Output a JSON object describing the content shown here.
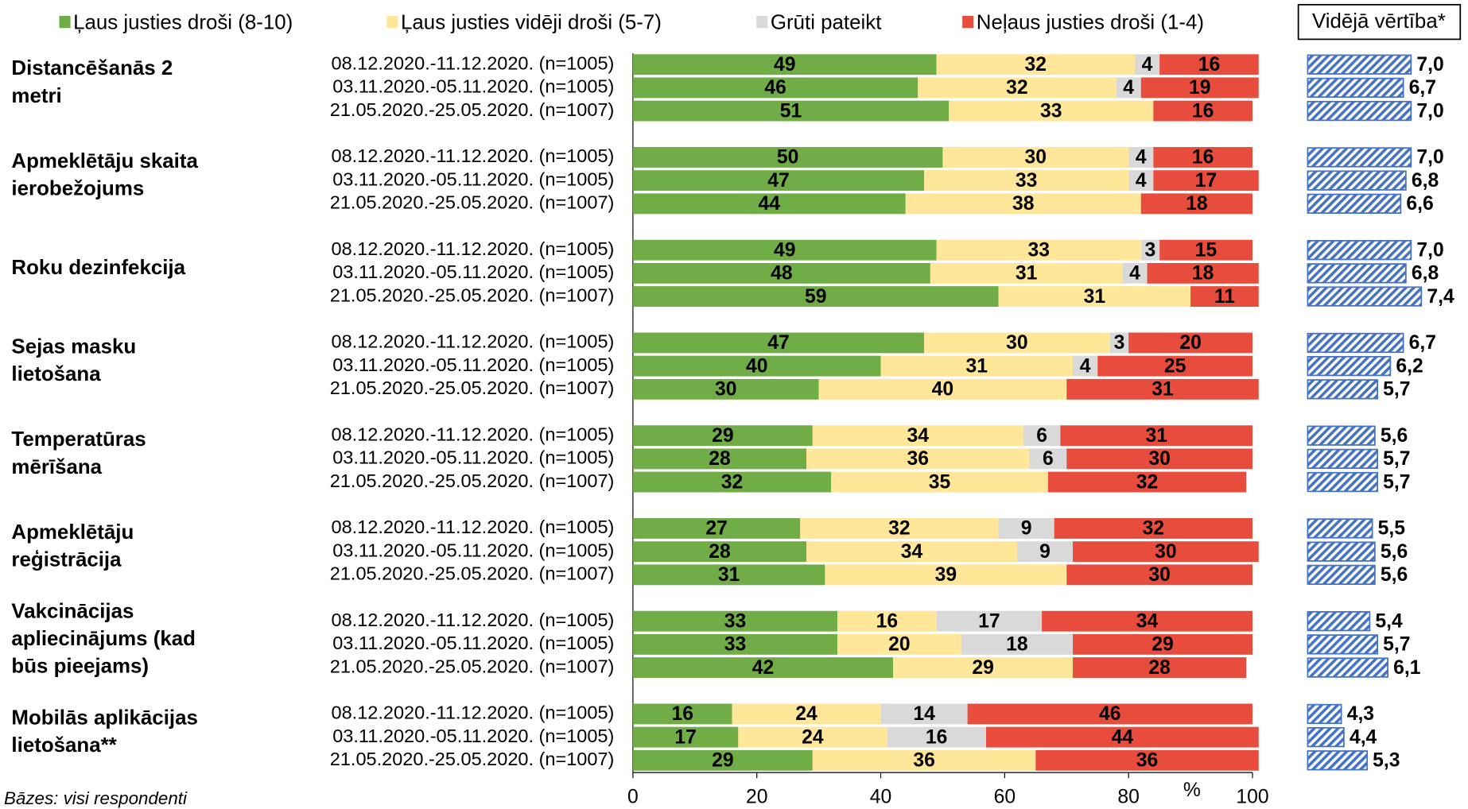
{
  "chart_data": [
    {
      "type": "stacked_bar",
      "groups": [
        "Distancēšanās 2 metri",
        "Apmeklētāju skaita ierobežojums",
        "Roku dezinfekcija",
        "Sejas masku lietošana",
        "Temperatūras mērīšana",
        "Apmeklētāju reģistrācija",
        "Vakcinācijas apliecinājums (kad būs pieejams)",
        "Mobilās aplikācijas lietošana**"
      ],
      "categories": [
        "08.12.2020.-11.12.2020. (n=1005)",
        "03.11.2020.-05.11.2020. (n=1005)",
        "21.05.2020.-25.05.2020. (n=1007)",
        "08.12.2020.-11.12.2020. (n=1005)",
        "03.11.2020.-05.11.2020. (n=1005)",
        "21.05.2020.-25.05.2020. (n=1007)",
        "08.12.2020.-11.12.2020. (n=1005)",
        "03.11.2020.-05.11.2020. (n=1005)",
        "21.05.2020.-25.05.2020. (n=1007)",
        "08.12.2020.-11.12.2020. (n=1005)",
        "03.11.2020.-05.11.2020. (n=1005)",
        "21.05.2020.-25.05.2020. (n=1007)",
        "08.12.2020.-11.12.2020. (n=1005)",
        "03.11.2020.-05.11.2020. (n=1005)",
        "21.05.2020.-25.05.2020. (n=1007)",
        "08.12.2020.-11.12.2020. (n=1005)",
        "03.11.2020.-05.11.2020. (n=1005)",
        "21.05.2020.-25.05.2020. (n=1007)",
        "08.12.2020.-11.12.2020. (n=1005)",
        "03.11.2020.-05.11.2020. (n=1005)",
        "21.05.2020.-25.05.2020. (n=1007)",
        "08.12.2020.-11.12.2020. (n=1005)",
        "03.11.2020.-05.11.2020. (n=1005)",
        "21.05.2020.-25.05.2020. (n=1007)"
      ],
      "series": [
        {
          "name": "Ļaus justies droši (8-10)",
          "color": "#70ad47",
          "values": [
            49,
            46,
            51,
            50,
            47,
            44,
            49,
            48,
            59,
            47,
            40,
            30,
            29,
            28,
            32,
            27,
            28,
            31,
            33,
            33,
            42,
            16,
            17,
            29
          ]
        },
        {
          "name": "Ļaus justies vidēji droši (5-7)",
          "color": "#ffe699",
          "values": [
            32,
            32,
            33,
            30,
            33,
            38,
            33,
            31,
            31,
            30,
            31,
            40,
            34,
            36,
            35,
            32,
            34,
            39,
            16,
            20,
            29,
            24,
            24,
            36
          ]
        },
        {
          "name": "Grūti pateikt",
          "color": "#d9d9d9",
          "values": [
            4,
            4,
            null,
            4,
            4,
            null,
            3,
            4,
            null,
            3,
            4,
            null,
            6,
            6,
            null,
            9,
            9,
            null,
            17,
            18,
            null,
            14,
            16,
            null
          ]
        },
        {
          "name": "Neļaus justies droši (1-4)",
          "color": "#e84c3d",
          "values": [
            16,
            19,
            16,
            16,
            17,
            18,
            15,
            18,
            11,
            20,
            25,
            31,
            31,
            30,
            32,
            32,
            30,
            30,
            34,
            29,
            28,
            46,
            44,
            36
          ]
        }
      ],
      "xlim": [
        0,
        100
      ],
      "xticks": [
        0,
        20,
        40,
        60,
        80,
        100
      ],
      "xlabel": "%",
      "note": "Bāzes: visi respondenti"
    },
    {
      "type": "bar",
      "title": "Vidējā vērtība*",
      "color": "#4472c4",
      "values": [
        7.0,
        6.7,
        7.0,
        7.0,
        6.8,
        6.6,
        7.0,
        6.8,
        7.4,
        6.7,
        6.2,
        5.7,
        5.6,
        5.7,
        5.7,
        5.5,
        5.6,
        5.6,
        5.4,
        5.7,
        6.1,
        4.3,
        4.4,
        5.3
      ],
      "value_labels": [
        "7,0",
        "6,7",
        "7,0",
        "7,0",
        "6,8",
        "6,6",
        "7,0",
        "6,8",
        "7,4",
        "6,7",
        "6,2",
        "5,7",
        "5,6",
        "5,7",
        "5,7",
        "5,5",
        "5,6",
        "5,6",
        "5,4",
        "5,7",
        "6,1",
        "4,3",
        "4,4",
        "5,3"
      ],
      "xlim": [
        3,
        8
      ]
    }
  ]
}
